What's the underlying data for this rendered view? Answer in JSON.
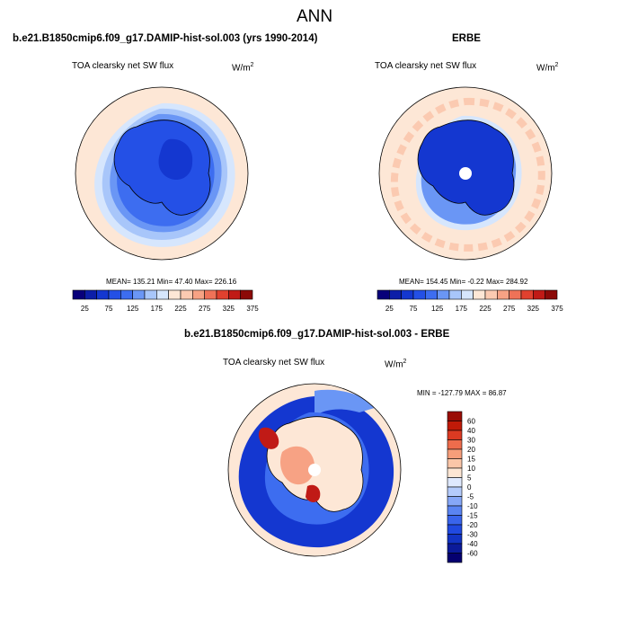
{
  "page_title": "ANN",
  "panels": {
    "model": {
      "header": "b.e21.B1850cmip6.f09_g17.DAMIP-hist-sol.003 (yrs 1990-2014)",
      "variable": "TOA clearsky net SW flux",
      "units_base": "W/m",
      "units_exp": "2",
      "stats": "MEAN= 135.21  Min=  47.40  Max= 226.16"
    },
    "obs": {
      "header": "ERBE",
      "variable": "TOA clearsky net SW flux",
      "units_base": "W/m",
      "units_exp": "2",
      "stats": "MEAN= 154.45  Min=  -0.22  Max= 284.92"
    },
    "diff": {
      "header": "b.e21.B1850cmip6.f09_g17.DAMIP-hist-sol.003 - ERBE",
      "variable": "TOA clearsky net SW flux",
      "units_base": "W/m",
      "units_exp": "2",
      "stats": "MIN = -127.79 MAX =  86.87"
    }
  },
  "chart_data": [
    {
      "type": "heatmap",
      "projection": "south-polar-stereographic",
      "title": "TOA clearsky net SW flux",
      "colorbar": {
        "orientation": "horizontal",
        "colors": [
          "#08007a",
          "#0c1ea8",
          "#1437d0",
          "#2450e6",
          "#3d6df0",
          "#6a96f5",
          "#a8c6fa",
          "#d6e6fd",
          "#fde7d6",
          "#fbcab1",
          "#f7a284",
          "#ef7258",
          "#e0412f",
          "#c01a16",
          "#8c0a08"
        ],
        "tick_labels": [
          "25",
          "75",
          "125",
          "175",
          "225",
          "275",
          "325",
          "375"
        ],
        "level_step": 25,
        "range": [
          0,
          375
        ]
      },
      "summary": {
        "mean": 135.21,
        "min": 47.4,
        "max": 226.16
      }
    },
    {
      "type": "heatmap",
      "projection": "south-polar-stereographic",
      "title": "TOA clearsky net SW flux",
      "colorbar": {
        "orientation": "horizontal",
        "colors": [
          "#08007a",
          "#0c1ea8",
          "#1437d0",
          "#2450e6",
          "#3d6df0",
          "#6a96f5",
          "#a8c6fa",
          "#d6e6fd",
          "#fde7d6",
          "#fbcab1",
          "#f7a284",
          "#ef7258",
          "#e0412f",
          "#c01a16",
          "#8c0a08"
        ],
        "tick_labels": [
          "25",
          "75",
          "125",
          "175",
          "225",
          "275",
          "325",
          "375"
        ],
        "level_step": 25,
        "range": [
          0,
          375
        ]
      },
      "summary": {
        "mean": 154.45,
        "min": -0.22,
        "max": 284.92
      }
    },
    {
      "type": "heatmap",
      "projection": "south-polar-stereographic",
      "title": "TOA clearsky net SW flux",
      "colorbar": {
        "orientation": "vertical",
        "colors": [
          "#050070",
          "#0b1a9a",
          "#1233c4",
          "#2049e0",
          "#3964ec",
          "#5a84f2",
          "#86a7f7",
          "#b4cbfb",
          "#dfe9fe",
          "#fde6d4",
          "#fbc6a8",
          "#f69e7a",
          "#ee6c4c",
          "#dc3a22",
          "#c01a08",
          "#9a0d05"
        ],
        "tick_labels": [
          "60",
          "40",
          "30",
          "20",
          "15",
          "10",
          "5",
          "0",
          "-5",
          "-10",
          "-15",
          "-20",
          "-30",
          "-40",
          "-60"
        ]
      },
      "summary": {
        "min": -127.79,
        "max": 86.87
      }
    }
  ]
}
